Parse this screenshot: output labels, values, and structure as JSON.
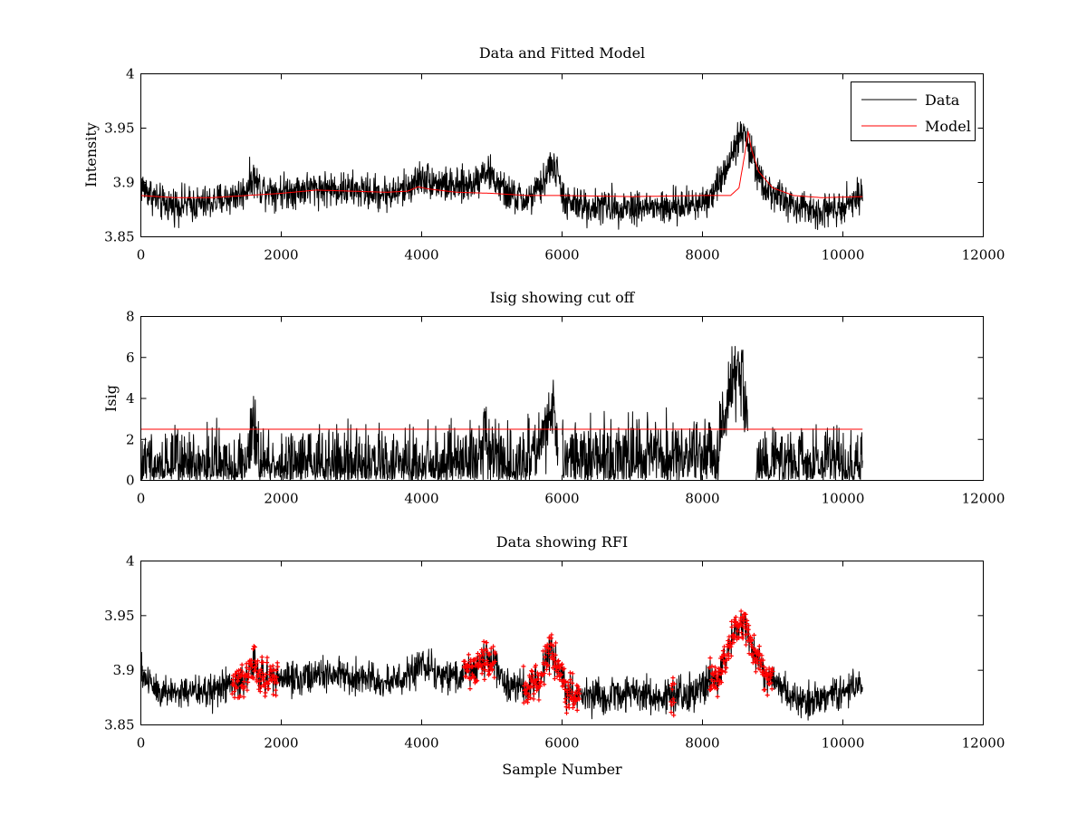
{
  "figure": {
    "background": "#ffffff",
    "data_color": "#000000",
    "model_color": "#ff0000",
    "rfi_color": "#ff0000"
  },
  "chart_data": [
    {
      "type": "line",
      "title": "Data and Fitted Model",
      "xlabel": "",
      "ylabel": "Intensity",
      "xlim": [
        0,
        12000
      ],
      "ylim": [
        3.85,
        4.0
      ],
      "xticks": [
        "0",
        "2000",
        "4000",
        "6000",
        "8000",
        "10000",
        "12000"
      ],
      "yticks": [
        "3.85",
        "3.9",
        "3.95",
        "4"
      ],
      "legend": {
        "position": "top-right",
        "entries": [
          "Data",
          "Model"
        ]
      },
      "grid": false,
      "series": [
        {
          "name": "Data",
          "color": "#000000",
          "noise": 0.008,
          "anchors": [
            [
              0,
              3.897
            ],
            [
              100,
              3.892
            ],
            [
              300,
              3.88
            ],
            [
              600,
              3.88
            ],
            [
              900,
              3.88
            ],
            [
              1200,
              3.885
            ],
            [
              1450,
              3.89
            ],
            [
              1600,
              3.905
            ],
            [
              1700,
              3.895
            ],
            [
              2000,
              3.892
            ],
            [
              2500,
              3.895
            ],
            [
              3000,
              3.893
            ],
            [
              3400,
              3.89
            ],
            [
              3600,
              3.89
            ],
            [
              3800,
              3.895
            ],
            [
              4000,
              3.905
            ],
            [
              4200,
              3.9
            ],
            [
              4500,
              3.895
            ],
            [
              4750,
              3.9
            ],
            [
              4900,
              3.912
            ],
            [
              5000,
              3.905
            ],
            [
              5200,
              3.89
            ],
            [
              5500,
              3.883
            ],
            [
              5700,
              3.895
            ],
            [
              5850,
              3.918
            ],
            [
              5950,
              3.905
            ],
            [
              6050,
              3.88
            ],
            [
              6400,
              3.878
            ],
            [
              7000,
              3.878
            ],
            [
              7500,
              3.876
            ],
            [
              8000,
              3.882
            ],
            [
              8200,
              3.895
            ],
            [
              8350,
              3.915
            ],
            [
              8450,
              3.935
            ],
            [
              8600,
              3.945
            ],
            [
              8700,
              3.925
            ],
            [
              8900,
              3.895
            ],
            [
              9100,
              3.885
            ],
            [
              9400,
              3.875
            ],
            [
              9800,
              3.875
            ],
            [
              10000,
              3.88
            ],
            [
              10280,
              3.888
            ]
          ]
        },
        {
          "name": "Model",
          "color": "#ff0000",
          "noise": 0,
          "anchors": [
            [
              0,
              3.888
            ],
            [
              500,
              3.886
            ],
            [
              1000,
              3.886
            ],
            [
              1500,
              3.888
            ],
            [
              2000,
              3.89
            ],
            [
              2500,
              3.893
            ],
            [
              3000,
              3.892
            ],
            [
              3500,
              3.891
            ],
            [
              3800,
              3.892
            ],
            [
              3950,
              3.896
            ],
            [
              4100,
              3.894
            ],
            [
              4500,
              3.891
            ],
            [
              5000,
              3.89
            ],
            [
              5500,
              3.888
            ],
            [
              6000,
              3.888
            ],
            [
              7000,
              3.887
            ],
            [
              8000,
              3.888
            ],
            [
              8400,
              3.888
            ],
            [
              8520,
              3.895
            ],
            [
              8600,
              3.925
            ],
            [
              8650,
              3.947
            ],
            [
              8700,
              3.93
            ],
            [
              8800,
              3.91
            ],
            [
              9000,
              3.895
            ],
            [
              9300,
              3.888
            ],
            [
              9700,
              3.886
            ],
            [
              10280,
              3.887
            ]
          ]
        }
      ]
    },
    {
      "type": "line",
      "title": "Isig showing cut off",
      "xlabel": "",
      "ylabel": "Isig",
      "xlim": [
        0,
        12000
      ],
      "ylim": [
        0,
        8
      ],
      "xticks": [
        "0",
        "2000",
        "4000",
        "6000",
        "8000",
        "10000",
        "12000"
      ],
      "yticks": [
        "0",
        "2",
        "4",
        "6",
        "8"
      ],
      "grid": false,
      "cutoff": {
        "y": 2.5,
        "x": [
          0,
          10280
        ],
        "color": "#ff0000"
      },
      "series": [
        {
          "name": "Isig",
          "color": "#000000",
          "noise": 0.9,
          "anchors": [
            [
              0,
              0.8
            ],
            [
              500,
              0.6
            ],
            [
              1500,
              0.7
            ],
            [
              1600,
              2.4
            ],
            [
              1700,
              0.8
            ],
            [
              2500,
              0.7
            ],
            [
              4000,
              0.7
            ],
            [
              4800,
              0.9
            ],
            [
              4900,
              2.6
            ],
            [
              5000,
              1.5
            ],
            [
              5200,
              0.8
            ],
            [
              5600,
              1.0
            ],
            [
              5850,
              3.5
            ],
            [
              5950,
              1.0
            ],
            [
              6100,
              1.0
            ],
            [
              7000,
              1.2
            ],
            [
              8000,
              1.0
            ],
            [
              8200,
              1.2
            ],
            [
              8400,
              4.5
            ],
            [
              8550,
              5.5
            ],
            [
              8650,
              2.5
            ],
            [
              8700,
              0.0
            ],
            [
              8800,
              0.8
            ],
            [
              10280,
              0.8
            ]
          ],
          "gaps": [
            [
              5950,
              6000
            ],
            [
              8650,
              8760
            ]
          ]
        }
      ]
    },
    {
      "type": "line",
      "title": "Data showing RFI",
      "xlabel": "Sample Number",
      "ylabel": "",
      "xlim": [
        0,
        12000
      ],
      "ylim": [
        3.85,
        4.0
      ],
      "xticks": [
        "0",
        "2000",
        "4000",
        "6000",
        "8000",
        "10000",
        "12000"
      ],
      "yticks": [
        "3.85",
        "3.9",
        "3.95",
        "4"
      ],
      "grid": false,
      "rfi_regions": [
        [
          1300,
          1950
        ],
        [
          4600,
          5050
        ],
        [
          5450,
          6250
        ],
        [
          7550,
          7600
        ],
        [
          8100,
          9000
        ]
      ],
      "series": [
        {
          "name": "Data",
          "color": "#000000",
          "noise": 0.008,
          "anchors": [
            [
              0,
              3.897
            ],
            [
              100,
              3.892
            ],
            [
              300,
              3.88
            ],
            [
              600,
              3.88
            ],
            [
              900,
              3.88
            ],
            [
              1200,
              3.885
            ],
            [
              1450,
              3.89
            ],
            [
              1600,
              3.905
            ],
            [
              1700,
              3.895
            ],
            [
              2000,
              3.892
            ],
            [
              2500,
              3.895
            ],
            [
              3000,
              3.893
            ],
            [
              3400,
              3.89
            ],
            [
              3600,
              3.89
            ],
            [
              3800,
              3.895
            ],
            [
              4000,
              3.905
            ],
            [
              4200,
              3.9
            ],
            [
              4500,
              3.895
            ],
            [
              4750,
              3.9
            ],
            [
              4900,
              3.912
            ],
            [
              5000,
              3.905
            ],
            [
              5200,
              3.89
            ],
            [
              5500,
              3.883
            ],
            [
              5700,
              3.895
            ],
            [
              5850,
              3.918
            ],
            [
              5950,
              3.905
            ],
            [
              6050,
              3.88
            ],
            [
              6400,
              3.878
            ],
            [
              7000,
              3.878
            ],
            [
              7500,
              3.876
            ],
            [
              8000,
              3.882
            ],
            [
              8200,
              3.895
            ],
            [
              8350,
              3.915
            ],
            [
              8450,
              3.935
            ],
            [
              8600,
              3.945
            ],
            [
              8700,
              3.925
            ],
            [
              8900,
              3.895
            ],
            [
              9100,
              3.885
            ],
            [
              9400,
              3.875
            ],
            [
              9800,
              3.875
            ],
            [
              10000,
              3.88
            ],
            [
              10280,
              3.888
            ]
          ]
        }
      ]
    }
  ]
}
